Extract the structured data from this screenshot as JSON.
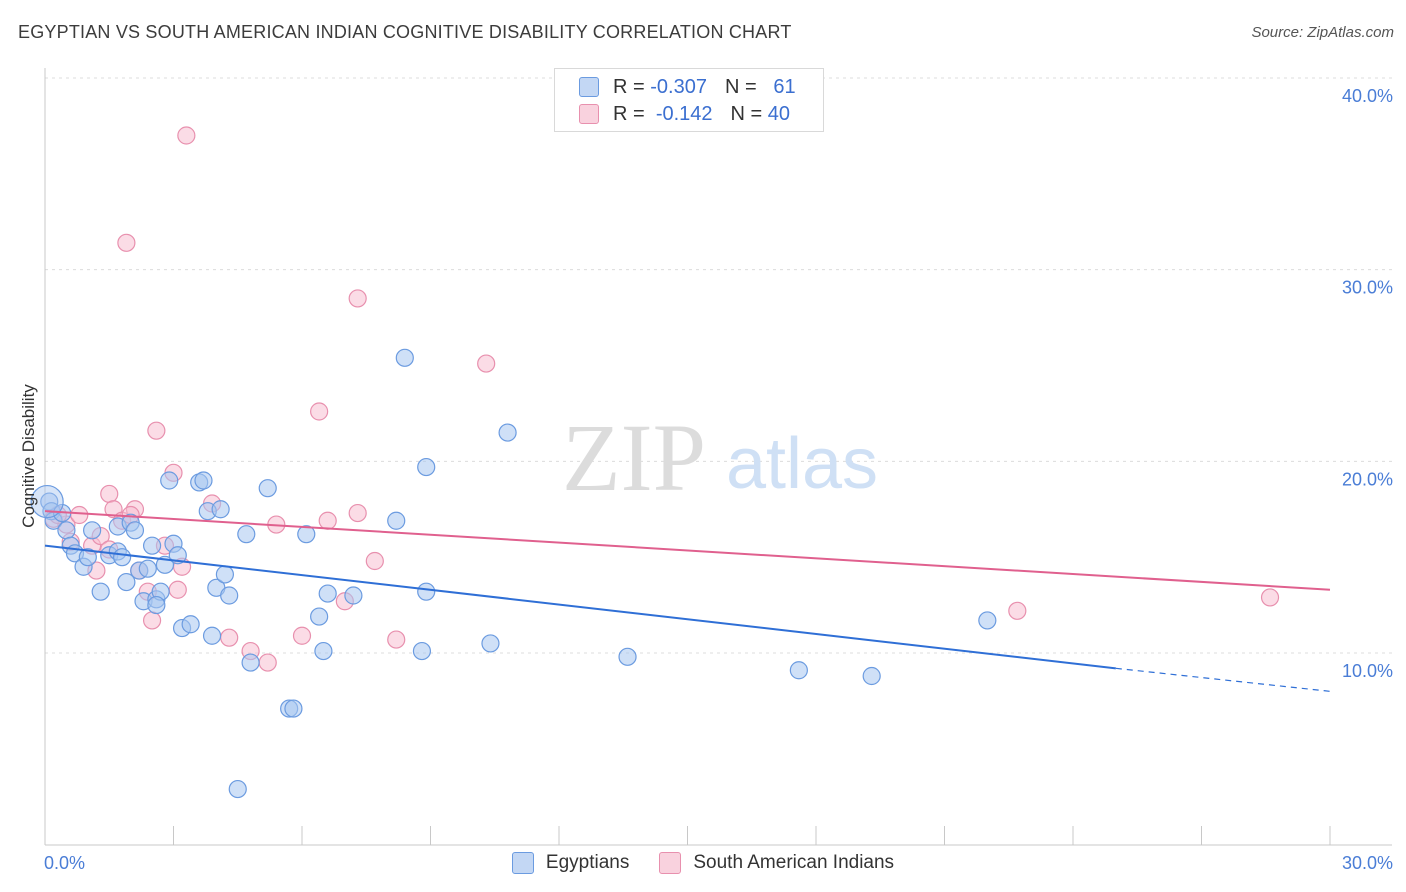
{
  "title": "EGYPTIAN VS SOUTH AMERICAN INDIAN COGNITIVE DISABILITY CORRELATION CHART",
  "source": "Source: ZipAtlas.com",
  "watermark": {
    "zip": "ZIP",
    "atlas": "atlas"
  },
  "legend": {
    "r_label": "R =",
    "n_label": "N =",
    "rows": [
      {
        "r": "-0.307",
        "n": "61",
        "color": "#a8c6f0",
        "border": "#6b9be0"
      },
      {
        "r": "-0.142",
        "n": "40",
        "color": "#f7c0d2",
        "border": "#e890ae"
      }
    ]
  },
  "bottom_legend": [
    "Egyptians",
    "South American Indians"
  ],
  "chart_data": {
    "type": "scatter",
    "title": "EGYPTIAN VS SOUTH AMERICAN INDIAN COGNITIVE DISABILITY CORRELATION CHART",
    "xlabel": "",
    "ylabel": "Cognitive Disability",
    "xlim": [
      0,
      30
    ],
    "ylim": [
      0,
      41
    ],
    "x_tick_labels": [
      "0.0%",
      "30.0%"
    ],
    "y_tick_labels": [
      "10.0%",
      "20.0%",
      "30.0%",
      "40.0%"
    ],
    "y_ticks": [
      10,
      20,
      30,
      40
    ],
    "grid": true,
    "legend_position": "top-center",
    "series": [
      {
        "name": "Egyptians",
        "color": "#6b9be0",
        "fill": "#a8c6f0",
        "line_color": "#2f6fd6",
        "trend": {
          "x0": 0,
          "y0": 15.6,
          "x1": 25.0,
          "y1": 9.2,
          "dash_x1": 30,
          "dash_y1": 8.0
        },
        "points": [
          [
            0.1,
            17.9
          ],
          [
            0.15,
            17.4
          ],
          [
            0.2,
            16.9
          ],
          [
            0.4,
            17.3
          ],
          [
            0.5,
            16.4
          ],
          [
            0.6,
            15.6
          ],
          [
            0.7,
            15.2
          ],
          [
            0.9,
            14.5
          ],
          [
            1.0,
            15.0
          ],
          [
            1.1,
            16.4
          ],
          [
            1.3,
            13.2
          ],
          [
            1.5,
            15.1
          ],
          [
            1.7,
            15.3
          ],
          [
            1.7,
            16.6
          ],
          [
            1.9,
            13.7
          ],
          [
            2.0,
            16.8
          ],
          [
            2.1,
            16.4
          ],
          [
            2.2,
            14.3
          ],
          [
            2.3,
            12.7
          ],
          [
            2.4,
            14.4
          ],
          [
            2.5,
            15.6
          ],
          [
            2.6,
            12.8
          ],
          [
            2.7,
            13.2
          ],
          [
            2.8,
            14.6
          ],
          [
            2.9,
            19.0
          ],
          [
            3.0,
            15.7
          ],
          [
            3.1,
            15.1
          ],
          [
            3.2,
            11.3
          ],
          [
            3.4,
            11.5
          ],
          [
            3.6,
            18.9
          ],
          [
            3.7,
            19.0
          ],
          [
            3.8,
            17.4
          ],
          [
            3.9,
            10.9
          ],
          [
            4.0,
            13.4
          ],
          [
            4.1,
            17.5
          ],
          [
            4.2,
            14.1
          ],
          [
            4.3,
            13.0
          ],
          [
            4.7,
            16.2
          ],
          [
            4.8,
            9.5
          ],
          [
            5.2,
            18.6
          ],
          [
            5.7,
            7.1
          ],
          [
            5.8,
            7.1
          ],
          [
            6.1,
            16.2
          ],
          [
            6.4,
            11.9
          ],
          [
            6.5,
            10.1
          ],
          [
            6.6,
            13.1
          ],
          [
            7.2,
            13.0
          ],
          [
            8.2,
            16.9
          ],
          [
            8.4,
            25.4
          ],
          [
            8.8,
            10.1
          ],
          [
            8.9,
            13.2
          ],
          [
            8.9,
            19.7
          ],
          [
            10.4,
            10.5
          ],
          [
            10.8,
            21.5
          ],
          [
            13.6,
            9.8
          ],
          [
            17.6,
            9.1
          ],
          [
            19.3,
            8.8
          ],
          [
            22.0,
            11.7
          ],
          [
            4.5,
            2.9
          ],
          [
            2.6,
            12.5
          ],
          [
            1.8,
            15.0
          ]
        ]
      },
      {
        "name": "South American Indians",
        "color": "#e890ae",
        "fill": "#f7c0d2",
        "line_color": "#e0608e",
        "trend": {
          "x0": 0,
          "y0": 17.4,
          "x1": 30,
          "y1": 13.3
        },
        "points": [
          [
            0.2,
            17.0
          ],
          [
            0.5,
            16.7
          ],
          [
            0.6,
            15.8
          ],
          [
            0.8,
            17.2
          ],
          [
            1.1,
            15.6
          ],
          [
            1.2,
            14.3
          ],
          [
            1.3,
            16.1
          ],
          [
            1.5,
            15.4
          ],
          [
            1.5,
            18.3
          ],
          [
            1.6,
            17.5
          ],
          [
            1.8,
            16.9
          ],
          [
            1.9,
            31.4
          ],
          [
            2.1,
            17.5
          ],
          [
            2.2,
            14.3
          ],
          [
            2.4,
            13.2
          ],
          [
            2.5,
            11.7
          ],
          [
            2.6,
            21.6
          ],
          [
            2.8,
            15.6
          ],
          [
            3.0,
            19.4
          ],
          [
            3.1,
            13.3
          ],
          [
            3.2,
            14.5
          ],
          [
            3.3,
            37.0
          ],
          [
            3.9,
            17.8
          ],
          [
            4.3,
            10.8
          ],
          [
            4.8,
            10.1
          ],
          [
            5.2,
            9.5
          ],
          [
            5.4,
            16.7
          ],
          [
            6.0,
            10.9
          ],
          [
            6.4,
            22.6
          ],
          [
            6.6,
            16.9
          ],
          [
            7.0,
            12.7
          ],
          [
            7.3,
            17.3
          ],
          [
            7.3,
            28.5
          ],
          [
            7.7,
            14.8
          ],
          [
            8.2,
            10.7
          ],
          [
            10.3,
            25.1
          ],
          [
            22.7,
            12.2
          ],
          [
            28.6,
            12.9
          ],
          [
            0.3,
            17.2
          ],
          [
            2.0,
            17.2
          ]
        ]
      }
    ]
  }
}
